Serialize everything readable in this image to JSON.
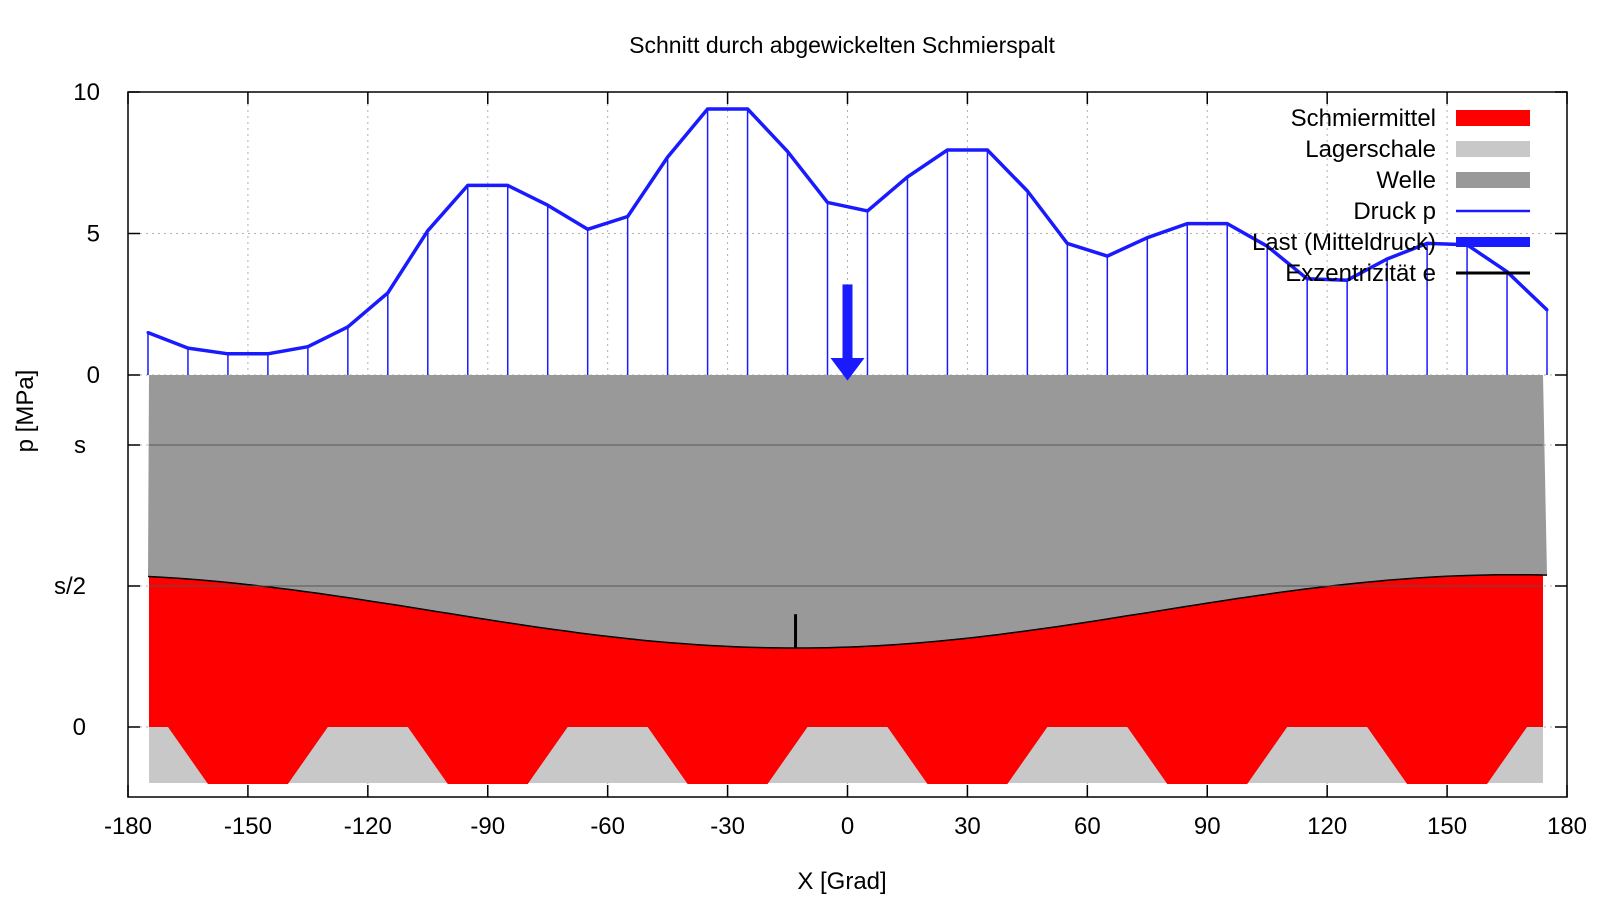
{
  "chart_data": {
    "type": "line",
    "title": "Schnitt durch abgewickelten Schmierspalt",
    "xlabel": "X [Grad]",
    "ylabel": "p [MPa]",
    "xlim": [
      -180,
      180
    ],
    "x_ticks": [
      "-180",
      "-150",
      "-120",
      "-90",
      "-60",
      "-30",
      "0",
      "30",
      "60",
      "90",
      "120",
      "150",
      "180"
    ],
    "pressure_ticks": [
      "10",
      "5",
      "0"
    ],
    "gap_ticks": [
      "s",
      "s/2",
      "0"
    ],
    "pressure_ylim": [
      0,
      10
    ],
    "gap_levels": {
      "s": 1.0,
      "s_half": 0.5,
      "zero": 0.0
    },
    "grid": true,
    "legend_position": "top-right",
    "legend": [
      {
        "label": "Schmiermittel",
        "color": "#ff0000"
      },
      {
        "label": "Lagerschale",
        "color": "#c8c8c8"
      },
      {
        "label": "Welle",
        "color": "#999999"
      },
      {
        "label": "Druck p",
        "color": "#1a1aff"
      },
      {
        "label": "Last (Mitteldruck)",
        "color": "#1a1aff"
      },
      {
        "label": "Exzentrizität e",
        "color": "#000000"
      }
    ],
    "series": [
      {
        "name": "Druck p",
        "x": [
          -175,
          -165,
          -155,
          -145,
          -135,
          -125,
          -115,
          -105,
          -95,
          -85,
          -75,
          -65,
          -55,
          -45,
          -35,
          -25,
          -15,
          -5,
          5,
          15,
          25,
          35,
          45,
          55,
          65,
          75,
          85,
          95,
          105,
          115,
          125,
          135,
          145,
          155,
          165,
          175
        ],
        "y": [
          1.5,
          0.95,
          0.75,
          0.75,
          1.0,
          1.7,
          2.9,
          5.1,
          6.7,
          6.7,
          6.0,
          5.15,
          5.6,
          7.7,
          9.4,
          9.4,
          7.9,
          6.1,
          5.8,
          7.0,
          7.95,
          7.95,
          6.5,
          4.65,
          4.2,
          4.85,
          5.35,
          5.35,
          4.55,
          3.4,
          3.35,
          4.1,
          4.65,
          4.6,
          3.65,
          2.3
        ]
      },
      {
        "name": "Welle (untere Kontur)",
        "x_range": [
          -175,
          175
        ],
        "center": 0.41,
        "amplitude": 0.13,
        "minimum_at": -13
      }
    ],
    "load": {
      "label": "Last (Mitteldruck)",
      "x": 0
    },
    "eccentricity": {
      "label": "Exzentrizität e",
      "x": -13,
      "from": 0.28,
      "to": 0.4
    },
    "bearing_pockets": {
      "label": "Lagerschale",
      "centers": [
        -150,
        -90,
        -30,
        30,
        90,
        150
      ]
    }
  }
}
